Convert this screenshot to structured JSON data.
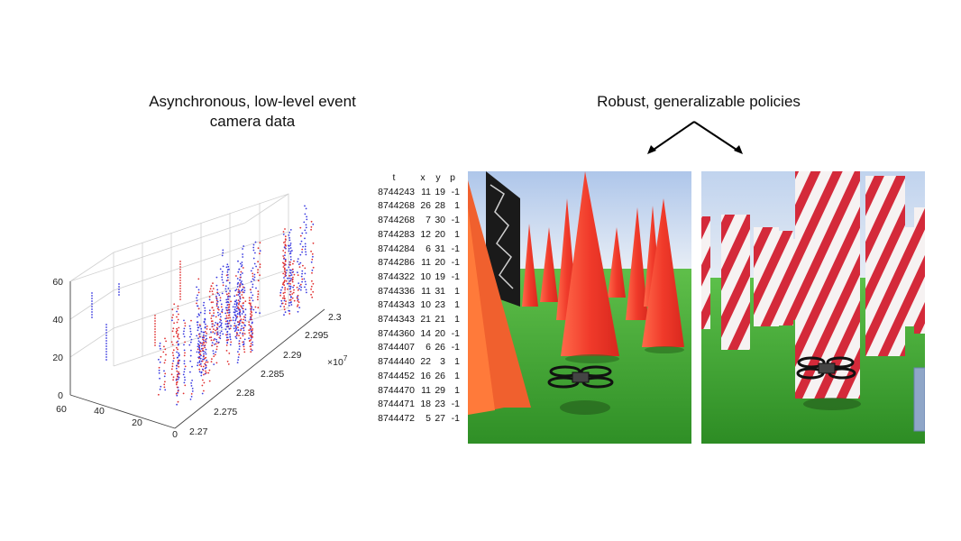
{
  "captions": {
    "left": "Asynchronous, low-level event camera data",
    "right": "Robust, generalizable policies"
  },
  "plot": {
    "z_ticks": [
      "0",
      "20",
      "40",
      "60"
    ],
    "x_ticks": [
      "0",
      "20",
      "40",
      "60"
    ],
    "y_ticks": [
      "2.27",
      "2.275",
      "2.28",
      "2.285",
      "2.29",
      "2.295",
      "2.3"
    ],
    "y_exponent": "×10",
    "y_exponent_power": "7",
    "positive_color": "#e03030",
    "negative_color": "#3a3ae0"
  },
  "event_table": {
    "headers": [
      "t",
      "x",
      "y",
      "p"
    ],
    "rows": [
      [
        "8744243",
        "11",
        "19",
        "-1"
      ],
      [
        "8744268",
        "26",
        "28",
        "1"
      ],
      [
        "8744268",
        "7",
        "30",
        "-1"
      ],
      [
        "8744283",
        "12",
        "20",
        "1"
      ],
      [
        "8744284",
        "6",
        "31",
        "-1"
      ],
      [
        "8744286",
        "11",
        "20",
        "-1"
      ],
      [
        "8744322",
        "10",
        "19",
        "-1"
      ],
      [
        "8744336",
        "11",
        "31",
        "1"
      ],
      [
        "8744343",
        "10",
        "23",
        "1"
      ],
      [
        "8744343",
        "21",
        "21",
        "1"
      ],
      [
        "8744360",
        "14",
        "20",
        "-1"
      ],
      [
        "8744407",
        "6",
        "26",
        "-1"
      ],
      [
        "8744440",
        "22",
        "3",
        "1"
      ],
      [
        "8744452",
        "16",
        "26",
        "1"
      ],
      [
        "8744470",
        "11",
        "29",
        "1"
      ],
      [
        "8744471",
        "18",
        "23",
        "-1"
      ],
      [
        "8744472",
        "5",
        "27",
        "-1"
      ]
    ]
  },
  "scenes": {
    "cones_color": "#ef3b2a",
    "grass_color": "#3fae34",
    "sky_color": "#c9d9ef",
    "stripe_red": "#d42a3a"
  }
}
